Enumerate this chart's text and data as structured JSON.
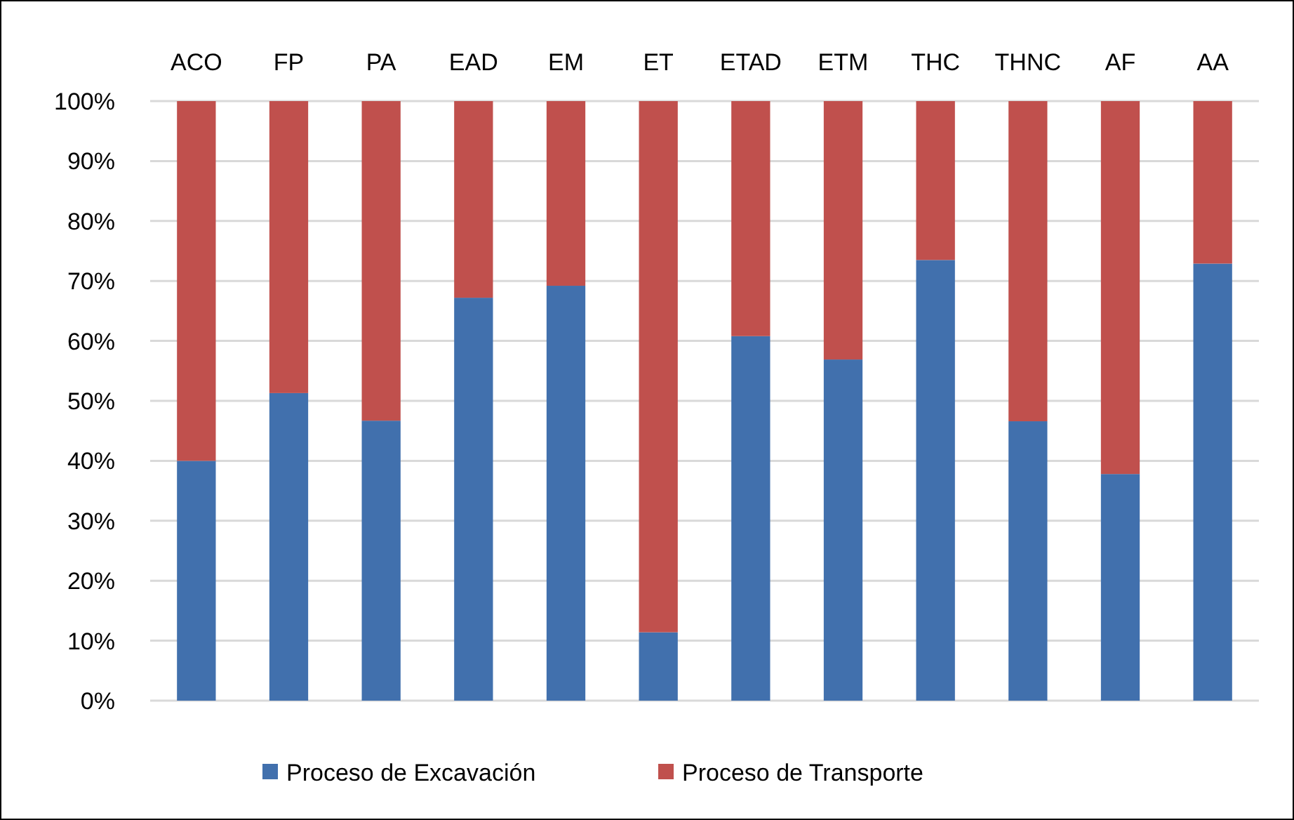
{
  "chart_data": {
    "type": "bar",
    "stacked": true,
    "categories": [
      "ACO",
      "FP",
      "PA",
      "EAD",
      "EM",
      "ET",
      "ETAD",
      "ETM",
      "THC",
      "THNC",
      "AF",
      "AA"
    ],
    "series": [
      {
        "name": "Proceso de Excavación",
        "color": "#4170ad",
        "values": [
          40.0,
          51.3,
          46.7,
          67.2,
          69.2,
          11.4,
          60.8,
          56.9,
          73.5,
          46.6,
          37.8,
          72.9
        ]
      },
      {
        "name": "Proceso de Transporte",
        "color": "#c0504d",
        "values": [
          60.0,
          48.7,
          53.3,
          32.8,
          30.8,
          88.6,
          39.2,
          43.1,
          26.5,
          53.4,
          62.2,
          27.1
        ]
      }
    ],
    "ylim": [
      0,
      100
    ],
    "yticks": [
      {
        "value": 0,
        "label": "0%"
      },
      {
        "value": 10,
        "label": "10%"
      },
      {
        "value": 20,
        "label": "20%"
      },
      {
        "value": 30,
        "label": "30%"
      },
      {
        "value": 40,
        "label": "40%"
      },
      {
        "value": 50,
        "label": "50%"
      },
      {
        "value": 60,
        "label": "60%"
      },
      {
        "value": 70,
        "label": "70%"
      },
      {
        "value": 80,
        "label": "80%"
      },
      {
        "value": 90,
        "label": "90%"
      },
      {
        "value": 100,
        "label": "100%"
      }
    ],
    "grid": "y",
    "legend": "bottom"
  }
}
